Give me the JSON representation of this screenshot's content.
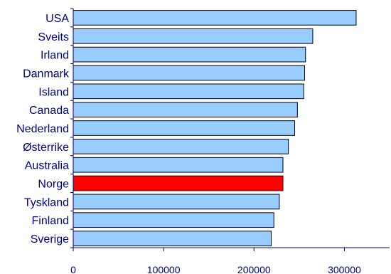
{
  "chart_data": {
    "type": "bar",
    "orientation": "horizontal",
    "title": "",
    "xlabel": "",
    "ylabel": "",
    "categories": [
      "USA",
      "Sveits",
      "Irland",
      "Danmark",
      "Island",
      "Canada",
      "Nederland",
      "Østerrike",
      "Australia",
      "Norge",
      "Tyskland",
      "Finland",
      "Sverige"
    ],
    "values": [
      313000,
      265000,
      257000,
      256000,
      255000,
      248000,
      245000,
      238000,
      232000,
      232000,
      228000,
      222000,
      219000
    ],
    "highlight_category": "Norge",
    "xlim": [
      0,
      350000
    ],
    "xticks": [
      "0",
      "100000",
      "200000",
      "300000"
    ],
    "xtick_values": [
      0,
      100000,
      200000,
      300000
    ],
    "grid": false,
    "legend": "none",
    "colors": {
      "bar": "#99ccff",
      "highlight": "#ff0000",
      "bar_stroke": "#000000",
      "axis": "#000080",
      "label_text": "#000080"
    }
  }
}
